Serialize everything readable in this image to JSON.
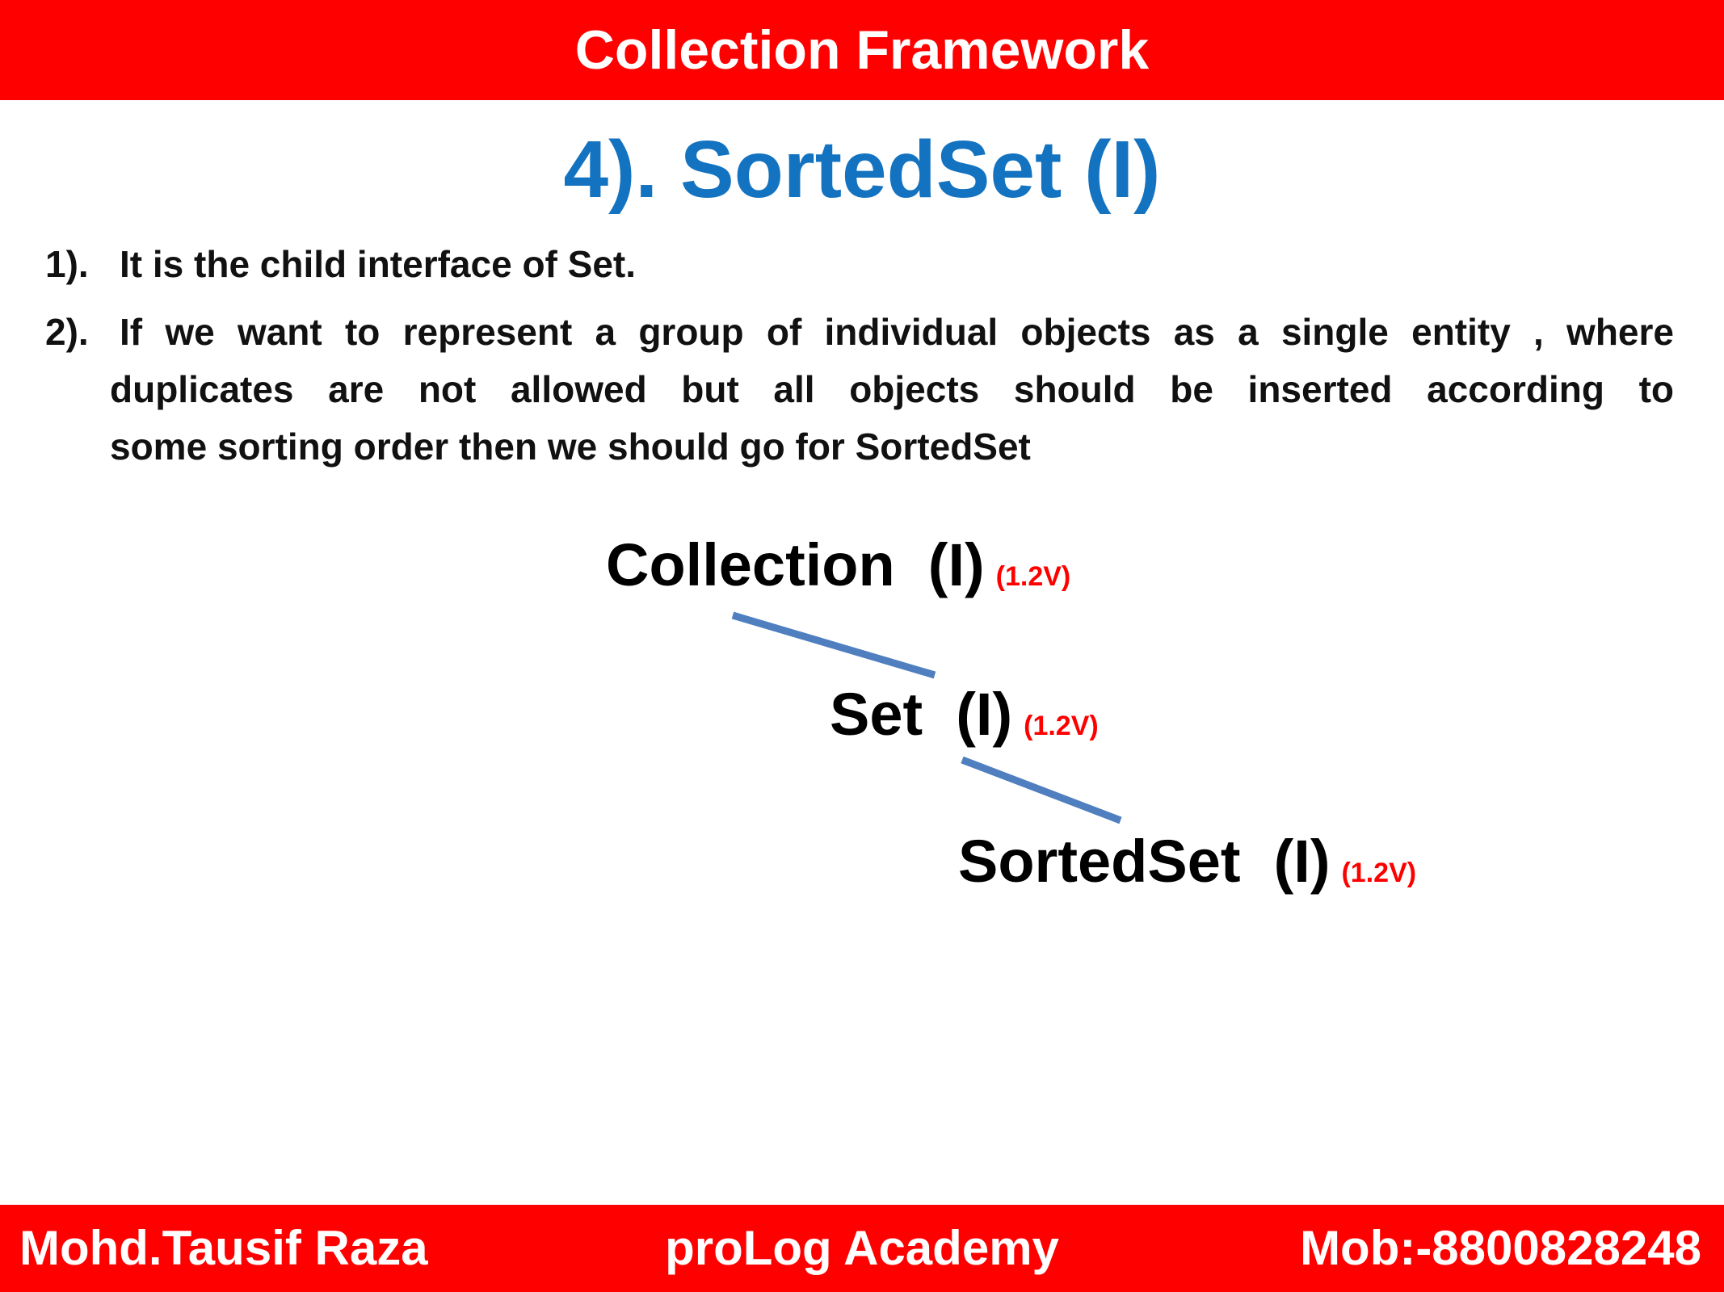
{
  "header": {
    "title": "Collection Framework"
  },
  "slide": {
    "title": "4). SortedSet  (I)"
  },
  "points": [
    {
      "number": "1).",
      "text": "It is the child interface of Set."
    },
    {
      "number": "2).",
      "line1": "If we want to represent a group of individual objects as a single entity , where",
      "line2": "duplicates are not allowed but all objects should be inserted according to",
      "line3": "some sorting order then we should go for SortedSet"
    }
  ],
  "hierarchy": {
    "nodes": [
      {
        "label": "Collection  (I)",
        "version": "(1.2V)"
      },
      {
        "label": "Set  (I)",
        "version": "(1.2V)"
      },
      {
        "label": "SortedSet  (I)",
        "version": "(1.2V)"
      }
    ],
    "connector_color": "#4f7fbf"
  },
  "footer": {
    "author": "Mohd.Tausif Raza",
    "academy": "proLog Academy",
    "contact": "Mob:-8800828248"
  },
  "colors": {
    "header_bg": "#ff0000",
    "title_blue": "#1373c0",
    "version_red": "#ff0000"
  }
}
